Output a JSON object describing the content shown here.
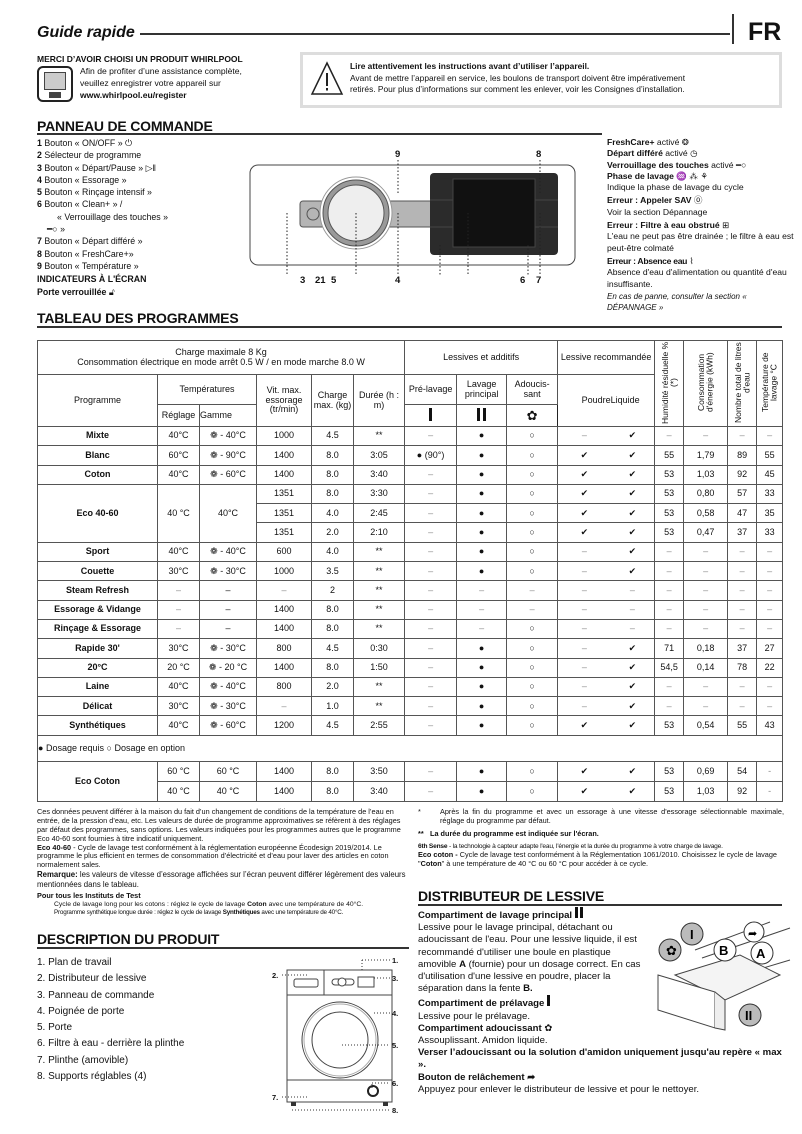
{
  "header": {
    "title": "Guide rapide",
    "lang": "FR"
  },
  "register": {
    "heading": "MERCI D’AVOIR CHOISI UN PRODUIT WHIRLPOOL",
    "line1": "Afin de profiter d’une assistance complète,",
    "line2": "veuillez enregistrer votre appareil sur",
    "url": "www.whirlpool.eu/register"
  },
  "warning": {
    "title": "Lire attentivement les instructions avant d’utiliser l’appareil.",
    "line1": "Avant de mettre l’appareil en service, les boulons de transport doivent être impérativement",
    "line2": "retirés. Pour plus d’informations sur comment les enlever, voir les Consignes d’installation."
  },
  "panel": {
    "heading": "PANNEAU DE COMMANDE",
    "items": [
      {
        "n": "1",
        "t": "Bouton « ON/OFF »"
      },
      {
        "n": "2",
        "t": "Sélecteur de programme"
      },
      {
        "n": "3",
        "t": "Bouton « Départ/Pause »"
      },
      {
        "n": "4",
        "t": "Bouton « Essorage »"
      },
      {
        "n": "5",
        "t": "Bouton « Rinçage intensif »"
      },
      {
        "n": "6",
        "t": "Bouton « Clean+ » /"
      },
      {
        "n": "",
        "t": "« Verrouillage des touches »"
      },
      {
        "n": "",
        "t": "»"
      },
      {
        "n": "7",
        "t": "Bouton « Départ différé »"
      },
      {
        "n": "8",
        "t": "Bouton « FreshCare+»"
      },
      {
        "n": "9",
        "t": "Bouton « Température »"
      }
    ],
    "indicators_heading": "INDICATEURS À L'ÉCRAN",
    "door_locked": "Porte verrouillée",
    "callouts": {
      "top9": "9",
      "top8": "8",
      "b1": "3",
      "b2": "21",
      "b3": "5",
      "b4": "4",
      "b5": "6",
      "b6": "7"
    }
  },
  "indicators": [
    {
      "b": "FreshCare+",
      "t": " activé",
      "icon": "freshcare-icon"
    },
    {
      "b": "Départ différé",
      "t": " activé",
      "icon": "delay-clock-icon"
    },
    {
      "b": "Verrouillage des touches",
      "t": " activé",
      "icon": "key-lock-icon"
    },
    {
      "b": "Phase de lavage",
      "t": "",
      "icon": "wash-phase-icons",
      "desc": "Indique la phase de lavage du cycle"
    },
    {
      "b": "Erreur : Appeler SAV",
      "t": "",
      "icon": "service-icon",
      "desc": "Voir la section Dépannage"
    },
    {
      "b": "Erreur : Filtre à eau obstrué",
      "t": "",
      "icon": "filter-icon",
      "desc": "L'eau ne peut pas être drainée ; le filtre à eau est peut-être colmaté"
    },
    {
      "b": "Erreur : Absence eau",
      "t": "",
      "icon": "no-water-icon",
      "desc": "Absence d'eau d'alimentation ou quantité d'eau insuffisante."
    }
  ],
  "indicators_note": "En cas de panne, consulter la section « DÉPANNAGE »",
  "table": {
    "heading": "TABLEAU DES PROGRAMMES",
    "h": {
      "charge_max": "Charge maximale 8 Kg",
      "conso": "Consommation électrique en mode arrêt 0.5 W / en mode marche 8.0 W",
      "lessives": "Lessives et additifs",
      "lessive_rec": "Lessive recommandée",
      "humidite": "Humidité résiduelle % (*)",
      "conso_kwh": "Consommation d'énergie (kWh)",
      "litres": "Nombre total de litres d'eau",
      "temp_lavage": "Température de lavage °C",
      "programme": "Programme",
      "temperatures": "Températures",
      "reglage": "Réglage",
      "gamme": "Gamme",
      "vit": "Vit. max. essorage (tr/min)",
      "charge": "Charge max. (kg)",
      "duree": "Durée (h : m)",
      "prelavage": "Pré-lavage",
      "lavage": "Lavage principal",
      "adoucissant": "Adoucis-sant",
      "poudre": "Poudre",
      "liquide": "Liquide"
    },
    "groups": [
      {
        "p": "Mixte",
        "r": "40°C",
        "g": "- 40°C",
        "subs": [
          [
            "1000",
            "4.5",
            "**",
            "–",
            "●",
            "○",
            "–",
            "✔",
            "–",
            "–",
            "–",
            "–"
          ]
        ]
      },
      {
        "p": "Blanc",
        "r": "60°C",
        "g": "- 90°C",
        "subs": [
          [
            "1400",
            "8.0",
            "3:05",
            "● (90°)",
            "●",
            "○",
            "✔",
            "✔",
            "55",
            "1,79",
            "89",
            "55"
          ]
        ]
      },
      {
        "p": "Coton",
        "r": "40°C",
        "g": "- 60°C",
        "subs": [
          [
            "1400",
            "8.0",
            "3:40",
            "–",
            "●",
            "○",
            "✔",
            "✔",
            "53",
            "1,03",
            "92",
            "45"
          ]
        ]
      },
      {
        "p": "Eco 40-60",
        "r": "40 °C",
        "g": "40°C",
        "plain": true,
        "subs": [
          [
            "1351",
            "8.0",
            "3:30",
            "–",
            "●",
            "○",
            "✔",
            "✔",
            "53",
            "0,80",
            "57",
            "33"
          ],
          [
            "1351",
            "4.0",
            "2:45",
            "–",
            "●",
            "○",
            "✔",
            "✔",
            "53",
            "0,58",
            "47",
            "35"
          ],
          [
            "1351",
            "2.0",
            "2:10",
            "–",
            "●",
            "○",
            "✔",
            "✔",
            "53",
            "0,47",
            "37",
            "33"
          ]
        ]
      },
      {
        "p": "Sport",
        "r": "40°C",
        "g": "- 40°C",
        "subs": [
          [
            "600",
            "4.0",
            "**",
            "–",
            "●",
            "○",
            "–",
            "✔",
            "–",
            "–",
            "–",
            "–"
          ]
        ]
      },
      {
        "p": "Couette",
        "r": "30°C",
        "g": "- 30°C",
        "subs": [
          [
            "1000",
            "3.5",
            "**",
            "–",
            "●",
            "○",
            "–",
            "✔",
            "–",
            "–",
            "–",
            "–"
          ]
        ]
      },
      {
        "p": "Steam Refresh",
        "r": "–",
        "g": "–",
        "plain": true,
        "subs": [
          [
            "–",
            "2",
            "**",
            "–",
            "–",
            "–",
            "–",
            "–",
            "–",
            "–",
            "–",
            "–"
          ]
        ]
      },
      {
        "p": "Essorage & Vidange",
        "r": "–",
        "g": "–",
        "plain": true,
        "subs": [
          [
            "1400",
            "8.0",
            "**",
            "–",
            "–",
            "–",
            "–",
            "–",
            "–",
            "–",
            "–",
            "–"
          ]
        ]
      },
      {
        "p": "Rinçage & Essorage",
        "r": "–",
        "g": "–",
        "plain": true,
        "subs": [
          [
            "1400",
            "8.0",
            "**",
            "–",
            "–",
            "○",
            "–",
            "–",
            "–",
            "–",
            "–",
            "–"
          ]
        ]
      },
      {
        "p": "Rapide 30'",
        "r": "30°C",
        "g": "- 30°C",
        "subs": [
          [
            "800",
            "4.5",
            "0:30",
            "–",
            "●",
            "○",
            "–",
            "✔",
            "71",
            "0,18",
            "37",
            "27"
          ]
        ]
      },
      {
        "p": "20°C",
        "r": "20 °C",
        "g": "- 20 °C",
        "subs": [
          [
            "1400",
            "8.0",
            "1:50",
            "–",
            "●",
            "○",
            "–",
            "✔",
            "54,5",
            "0,14",
            "78",
            "22"
          ]
        ]
      },
      {
        "p": "Laine",
        "r": "40°C",
        "g": "- 40°C",
        "subs": [
          [
            "800",
            "2.0",
            "**",
            "–",
            "●",
            "○",
            "–",
            "✔",
            "–",
            "–",
            "–",
            "–"
          ]
        ]
      },
      {
        "p": "Délicat",
        "r": "30°C",
        "g": "- 30°C",
        "subs": [
          [
            "–",
            "1.0",
            "**",
            "–",
            "●",
            "○",
            "–",
            "✔",
            "–",
            "–",
            "–",
            "–"
          ]
        ]
      },
      {
        "p": "Synthétiques",
        "r": "40°C",
        "g": "- 60°C",
        "subs": [
          [
            "1200",
            "4.5",
            "2:55",
            "–",
            "●",
            "○",
            "✔",
            "✔",
            "53",
            "0,54",
            "55",
            "43"
          ]
        ]
      }
    ],
    "legend": {
      "required": "Dosage requis",
      "optional": "Dosage en option"
    },
    "eco_coton": {
      "p": "Eco Coton",
      "subs": [
        {
          "r": "60 °C",
          "g": "60 °C",
          "c": [
            "1400",
            "8.0",
            "3:50",
            "–",
            "●",
            "○",
            "✔",
            "✔",
            "53",
            "0,69",
            "54",
            "-"
          ]
        },
        {
          "r": "40 °C",
          "g": "40 °C",
          "c": [
            "1400",
            "8.0",
            "3:40",
            "–",
            "●",
            "○",
            "✔",
            "✔",
            "53",
            "1,03",
            "92",
            "-"
          ]
        }
      ]
    }
  },
  "notes_left": {
    "p1": "Ces données peuvent différer à la maison du fait d’un changement de conditions de la température de l’eau en entrée, de la pression d’eau, etc. Les valeurs de durée de programme approximatives se réfèrent à des réglages par défaut des programmes, sans options. Les valeurs indiquées pour les programmes autres que le programme Eco 40-60 sont fournies à titre indicatif uniquement.",
    "eco_b": "Eco 40-60",
    "eco_t": " - Cycle de lavage test conformément à la réglementation européenne Écodesign 2019/2014. Le programme le plus efficient en termes de consommation d’électricité et d’eau pour laver des articles en coton normalement sales.",
    "rem_b": "Remarque:",
    "rem_t": " les valeurs de vitesse d’essorage affichées sur l’écran peuvent différer légèrement des valeurs mentionnées dans le tableau.",
    "inst_h": "Pour tous les Instituts de Test",
    "i1a": "Cycle de lavage long pour les cotons : réglez le cycle de lavage ",
    "i1b": "Coton",
    "i1c": " avec une température de 40°C.",
    "i2a": "Programme synthétique longue durée : réglez le cycle de lavage ",
    "i2b": "Synthétiques",
    "i2c": " avec une température de 40°C."
  },
  "notes_right": {
    "s1": "*",
    "n1": "Après la fin du programme et avec un essorage à une vitesse d'essorage sélectionnable maximale, réglage du programme par défaut.",
    "s2": "**",
    "n2": "La durée du programme est indiquée sur l'écran.",
    "six_b": "6th Sense",
    "six_t": " - la technologie à capteur adapte l'eau, l'énergie et la durée du programme à votre charge de lavage.",
    "ec_b": "Eco coton -",
    "ec_t1": " Cycle de lavage test conformément à la Réglementation 1061/2010. Choisissez le cycle de lavage \"",
    "ec_t2": "Coton",
    "ec_t3": "\" à une température de 40 °C ou 60 °C pour accéder à ce cycle."
  },
  "description": {
    "heading": "DESCRIPTION DU PRODUIT",
    "items": [
      "1.  Plan de travail",
      "2.  Distributeur de lessive",
      "3.  Panneau de commande",
      "4.  Poignée de porte",
      "5.  Porte",
      "6.  Filtre à eau - derrière la plinthe",
      "7.  Plinthe (amovible)",
      "8.  Supports réglables (4)"
    ],
    "callouts": [
      "1.",
      "2.",
      "3.",
      "4.",
      "5.",
      "6.",
      "7.",
      "8."
    ]
  },
  "dispenser": {
    "heading": "DISTRIBUTEUR DE LESSIVE",
    "main_h": "Compartiment de lavage principal",
    "main_t1": "Lessive pour le lavage principal, détachant ou adoucissant de l'eau. Pour une lessive liquide, il est recommandé d'utiliser une boule en plastique amovible ",
    "main_A": "A",
    "main_t2": " (fournie) pour un dosage correct. En cas d'utilisation d'une lessive en poudre, placer la séparation dans la fente ",
    "main_B": "B.",
    "pre_h": "Compartiment de prélavage",
    "pre_t": "Lessive pour le prélavage.",
    "soft_h": "Compartiment adoucissant",
    "soft_t": "Assouplissant. Amidon liquide.",
    "warn": "Verser l’adoucissant ou la solution d'amidon uniquement jusqu'au repère « max ».",
    "rel_h": "Bouton de relâchement",
    "rel_t": "Appuyez pour enlever le distributeur de lessive et pour le nettoyer.",
    "labels": {
      "I": "I",
      "II": "II",
      "A": "A",
      "B": "B"
    }
  }
}
